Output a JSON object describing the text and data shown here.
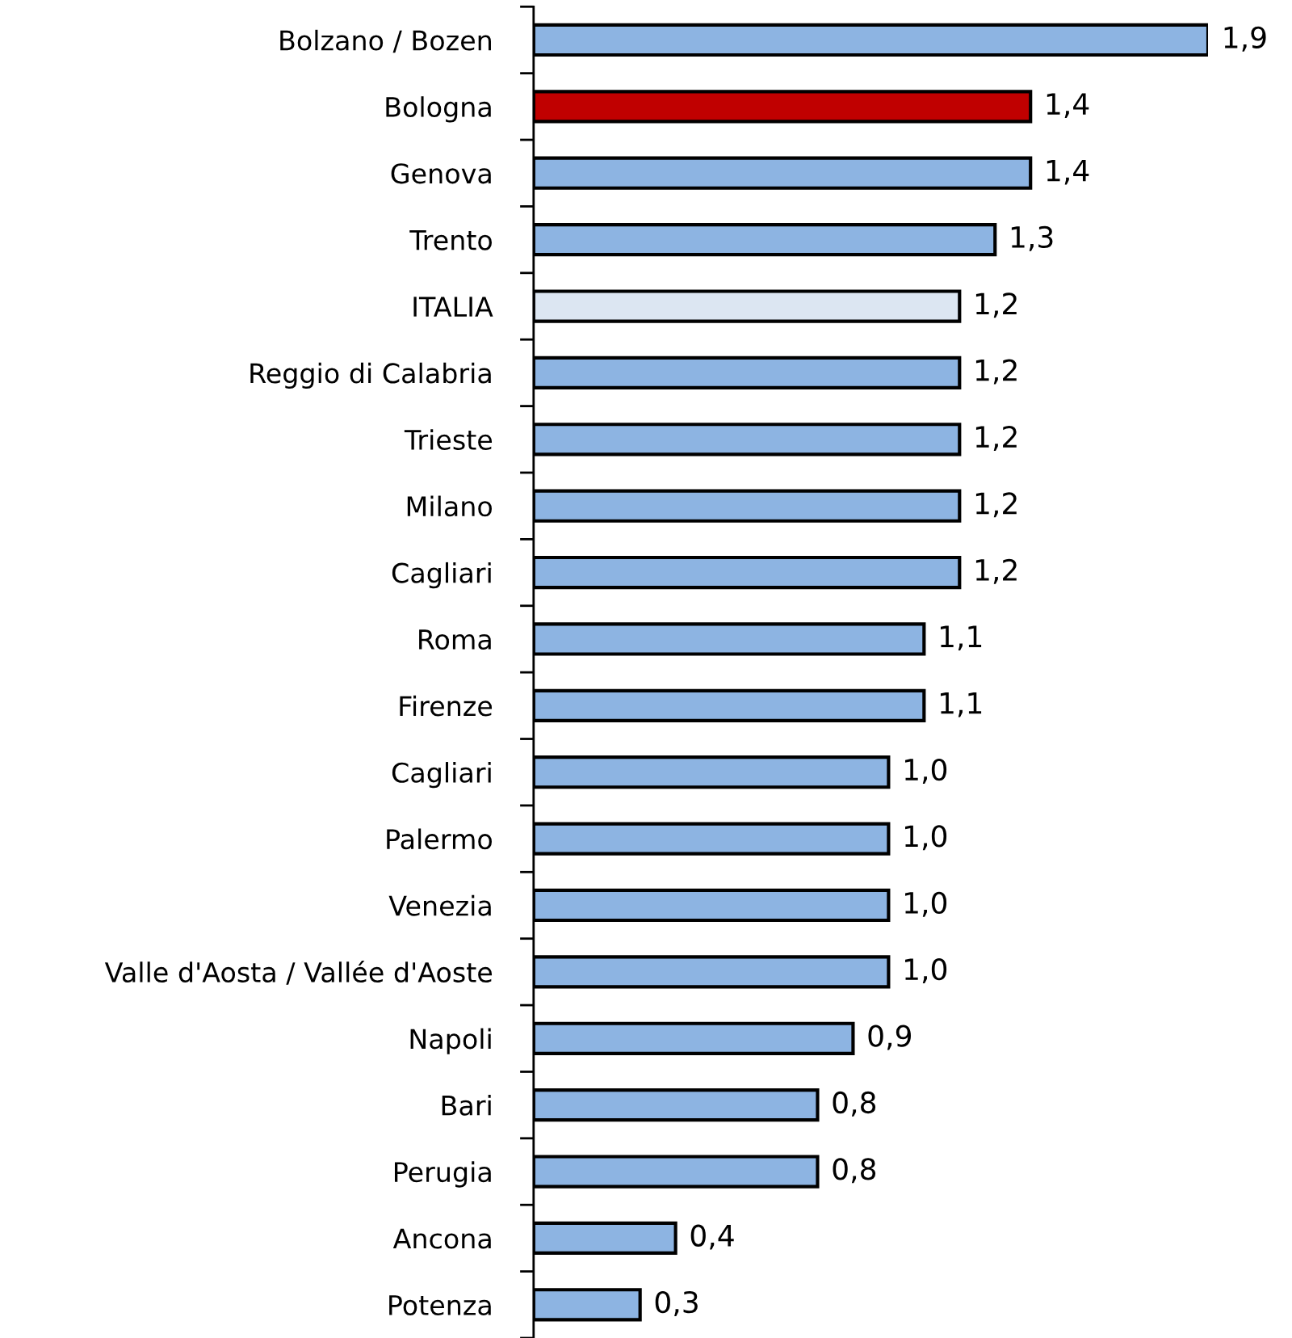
{
  "chart_data": {
    "type": "bar",
    "orientation": "horizontal",
    "categories": [
      "Bolzano / Bozen",
      "Bologna",
      "Genova",
      "Trento",
      "ITALIA",
      "Reggio di Calabria",
      "Trieste",
      "Milano",
      "Cagliari",
      "Roma",
      "Firenze",
      "Cagliari",
      "Palermo",
      "Venezia",
      "Valle d'Aosta / Vallée d'Aoste",
      "Napoli",
      "Bari",
      "Perugia",
      "Ancona",
      "Potenza"
    ],
    "values": [
      1.9,
      1.4,
      1.4,
      1.3,
      1.2,
      1.2,
      1.2,
      1.2,
      1.2,
      1.1,
      1.1,
      1.0,
      1.0,
      1.0,
      1.0,
      0.9,
      0.8,
      0.8,
      0.4,
      0.3
    ],
    "value_labels": [
      "1,9",
      "1,4",
      "1,4",
      "1,3",
      "1,2",
      "1,2",
      "1,2",
      "1,2",
      "1,2",
      "1,1",
      "1,1",
      "1,0",
      "1,0",
      "1,0",
      "1,0",
      "0,9",
      "0,8",
      "0,8",
      "0,4",
      "0,3"
    ],
    "colors": [
      "#8db4e2",
      "#c00000",
      "#8db4e2",
      "#8db4e2",
      "#dce6f2",
      "#8db4e2",
      "#8db4e2",
      "#8db4e2",
      "#8db4e2",
      "#8db4e2",
      "#8db4e2",
      "#8db4e2",
      "#8db4e2",
      "#8db4e2",
      "#8db4e2",
      "#8db4e2",
      "#8db4e2",
      "#8db4e2",
      "#8db4e2",
      "#8db4e2"
    ],
    "grid": false,
    "legend": false
  }
}
